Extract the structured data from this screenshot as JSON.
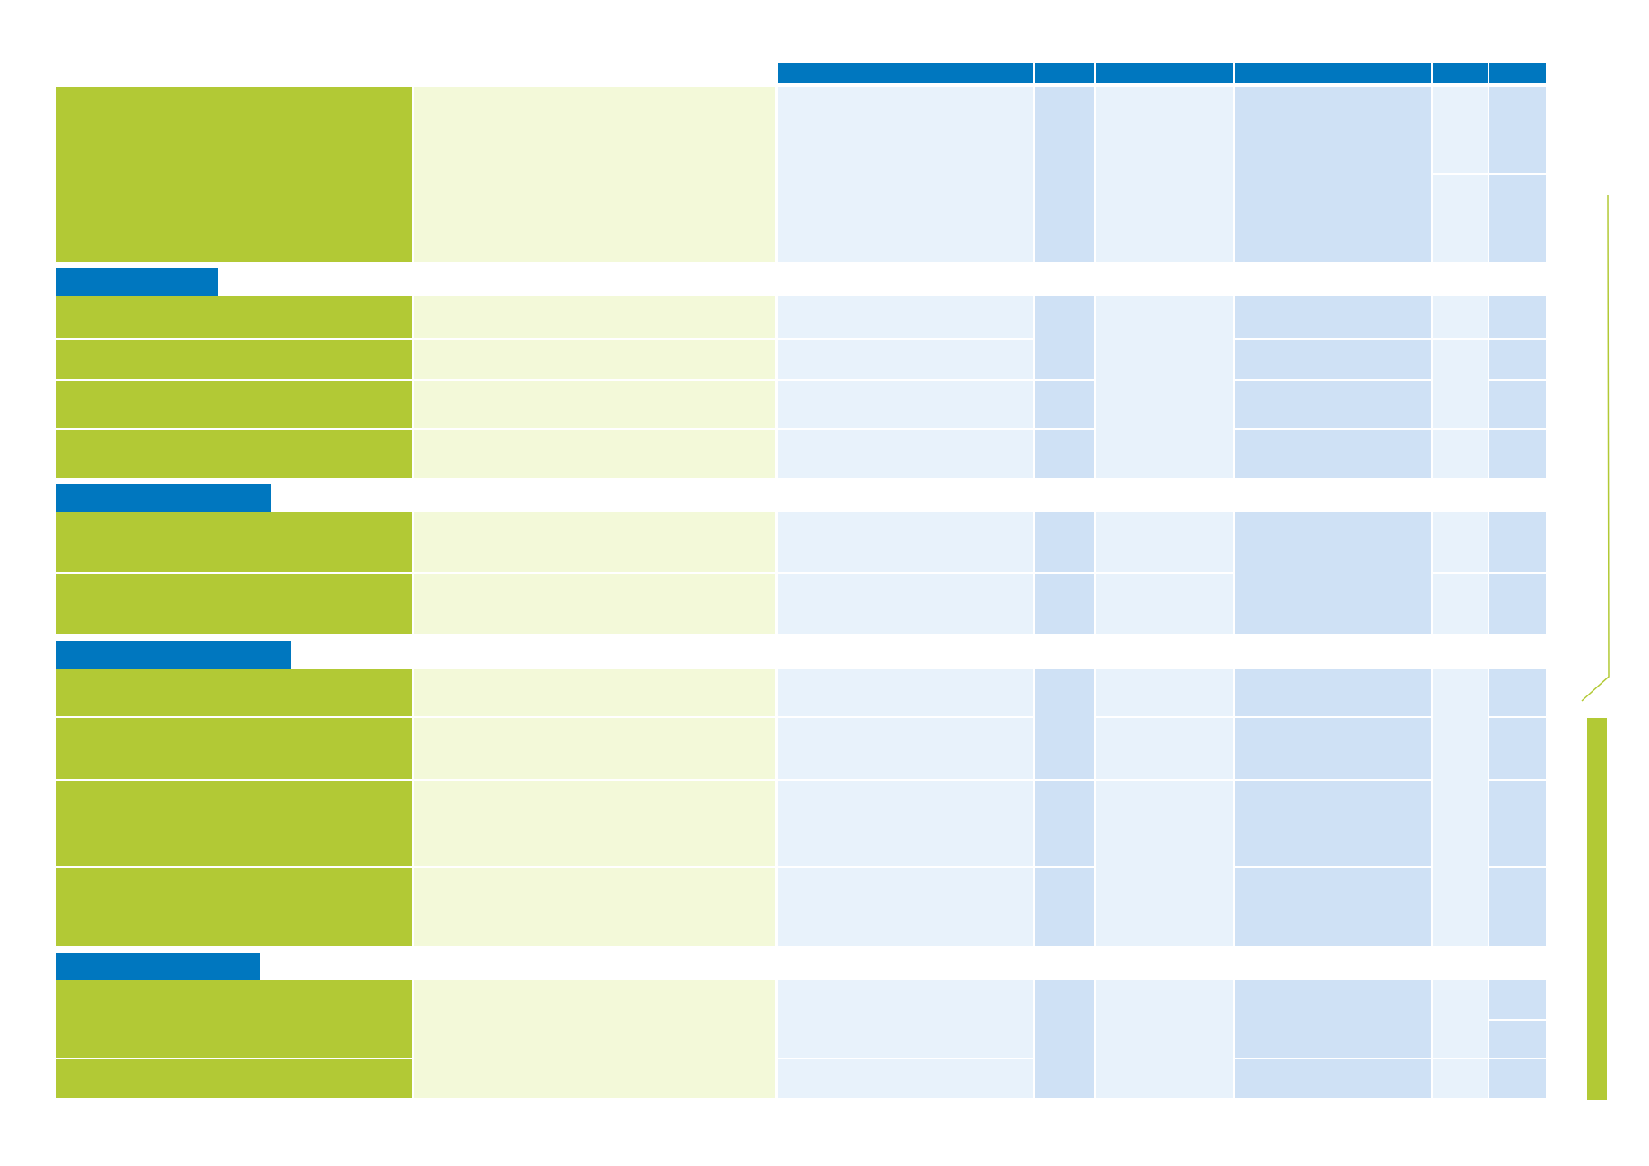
{
  "document": {
    "title": "",
    "columns": [
      "",
      "",
      "",
      "",
      "",
      ""
    ],
    "sections": [
      {
        "name": "",
        "rows": 1
      },
      {
        "name": "",
        "rows": 4
      },
      {
        "name": "",
        "rows": 2
      },
      {
        "name": "",
        "rows": 4
      },
      {
        "name": "",
        "rows": 2
      }
    ]
  },
  "colors": {
    "header_blue": "#0077bf",
    "criteria_green": "#b2c935",
    "description_light_green": "#f3f9d9",
    "cell_light_blue": "#e8f2fb",
    "cell_mid_blue": "#cfe1f5",
    "side_marker_green": "#b2c935"
  },
  "icons": [
    "side-bracket-line"
  ]
}
